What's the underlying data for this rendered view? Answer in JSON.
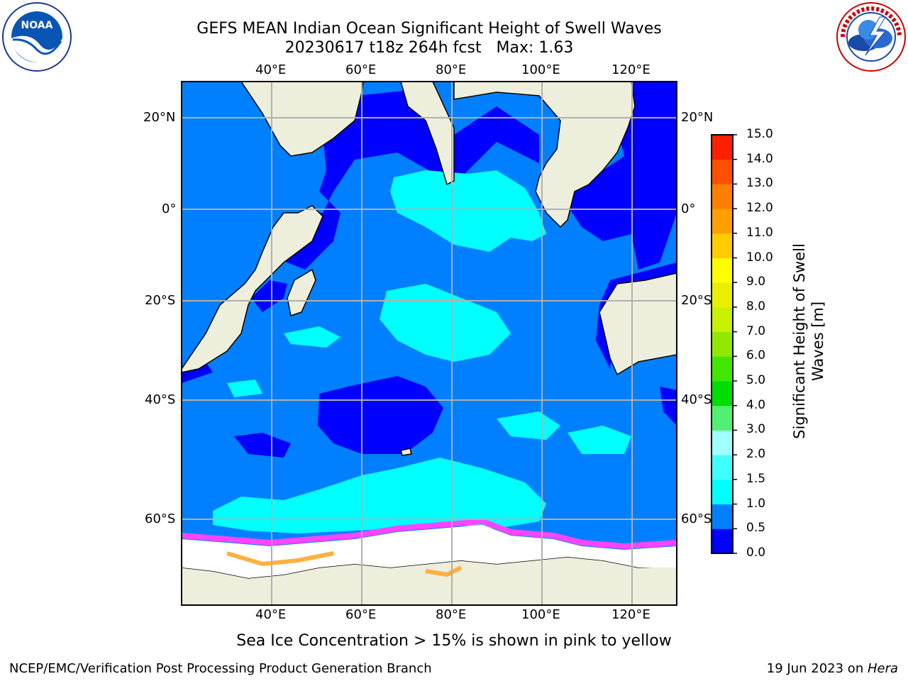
{
  "header": {
    "title_line1": "GEFS MEAN Indian Ocean Significant Height of Swell Waves",
    "title_line2": "20230617 t18z 264h fcst   Max: 1.63"
  },
  "logos": {
    "left": {
      "text": "NOAA",
      "ring_text": "NATIONAL OCEANIC AND ATMOSPHERIC ADMINISTRATION",
      "bottom_text": "U.S. DEPARTMENT OF COMMERCE"
    },
    "right": {
      "ring_text": "NATIONAL WEATHER SERVICE"
    }
  },
  "map": {
    "lon_labels": [
      "40°E",
      "60°E",
      "80°E",
      "100°E",
      "120°E"
    ],
    "lat_labels": [
      "20°N",
      "0°",
      "20°S",
      "40°S",
      "60°S"
    ],
    "colors": {
      "land": "#eeeedc",
      "deep_blue": "#0000ff",
      "mid_blue": "#0080ff",
      "cyan": "#00ffff",
      "ice_white": "#ffffff",
      "ice_pink": "#ff44ff",
      "ice_orange": "#ffb040",
      "grid": "#b0b0b0"
    }
  },
  "colorbar": {
    "label_line1": "Significant Height of Swell",
    "label_line2": "Waves [m]",
    "ticks": [
      "0.0",
      "0.5",
      "1.0",
      "1.5",
      "2.0",
      "3.0",
      "4.0",
      "5.0",
      "6.0",
      "7.0",
      "8.0",
      "9.0",
      "10.0",
      "11.0",
      "12.0",
      "13.0",
      "14.0",
      "15.0"
    ],
    "colors": [
      "#0000ff",
      "#0080ff",
      "#00ffff",
      "#40ffff",
      "#a0ffff",
      "#50f070",
      "#00dc00",
      "#40e800",
      "#90e800",
      "#c8f000",
      "#e8f000",
      "#ffff00",
      "#ffcc00",
      "#ffa000",
      "#ff8000",
      "#ff5000",
      "#ff2000",
      "#ff0000"
    ]
  },
  "caption": "Sea Ice Concentration > 15% is shown in pink to yellow",
  "footer": {
    "left": "NCEP/EMC/Verification Post Processing Product Generation Branch",
    "right_date": "19 Jun 2023 on ",
    "right_host": "Hera"
  }
}
